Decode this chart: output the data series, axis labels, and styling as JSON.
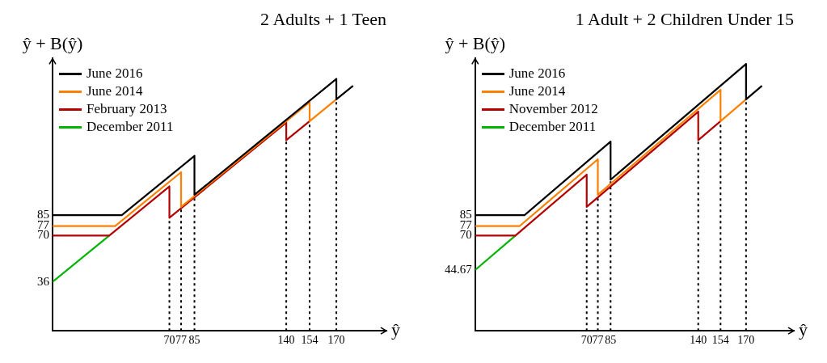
{
  "chart_data": [
    {
      "type": "line",
      "title": "2 Adults + 1 Teen",
      "xlabel": "ŷ",
      "ylabel": "ŷ + B(ŷ)",
      "xlim": [
        0,
        200
      ],
      "ylim": [
        0,
        200
      ],
      "xticks": [
        70,
        77,
        85,
        140,
        154,
        170
      ],
      "yticks": [
        36,
        70,
        77,
        85
      ],
      "grid": false,
      "marker": "none",
      "legend": "top left",
      "series": [
        {
          "name": "June 2016",
          "color": "#000000",
          "x": [
            0,
            41.5,
            85,
            85,
            170,
            170,
            180
          ],
          "values": [
            85,
            85,
            128.5,
            100,
            185,
            170,
            180
          ]
        },
        {
          "name": "June 2014",
          "color": "#ff8000",
          "x": [
            0,
            37.5,
            77,
            77,
            154,
            154,
            170
          ],
          "values": [
            77,
            77,
            116.5,
            91,
            168,
            154,
            170
          ]
        },
        {
          "name": "February 2013",
          "color": "#b30000",
          "x": [
            0,
            34,
            70,
            70,
            140,
            140,
            154
          ],
          "values": [
            70,
            70,
            106,
            83,
            153,
            140,
            154
          ]
        },
        {
          "name": "December 2011",
          "color": "#00b300",
          "x": [
            0,
            34
          ],
          "values": [
            36,
            70
          ]
        }
      ],
      "ref_lines": [
        {
          "axis": "x",
          "value": 70,
          "line_style": "dotted",
          "color": "#000000"
        },
        {
          "axis": "x",
          "value": 77,
          "line_style": "dotted",
          "color": "#000000"
        },
        {
          "axis": "x",
          "value": 85,
          "line_style": "dotted",
          "color": "#000000"
        },
        {
          "axis": "x",
          "value": 140,
          "line_style": "dotted",
          "color": "#000000"
        },
        {
          "axis": "x",
          "value": 154,
          "line_style": "dotted",
          "color": "#000000"
        },
        {
          "axis": "x",
          "value": 170,
          "line_style": "dotted",
          "color": "#000000"
        }
      ]
    },
    {
      "type": "line",
      "title": "1 Adult + 2 Children Under 15",
      "xlabel": "ŷ",
      "ylabel": "ŷ + B(ŷ)",
      "xlim": [
        0,
        200
      ],
      "ylim": [
        0,
        200
      ],
      "xticks": [
        70,
        77,
        85,
        140,
        154,
        170
      ],
      "yticks": [
        44.67,
        70,
        77,
        85
      ],
      "grid": false,
      "marker": "none",
      "legend": "top left",
      "series": [
        {
          "name": "June 2016",
          "color": "#000000",
          "x": [
            0,
            31,
            85,
            85,
            170,
            170,
            180
          ],
          "values": [
            85,
            85,
            139,
            111,
            196,
            170,
            180
          ]
        },
        {
          "name": "June 2014",
          "color": "#ff8000",
          "x": [
            0,
            28,
            77,
            77,
            154,
            154,
            170
          ],
          "values": [
            77,
            77,
            126,
            100,
            177,
            154,
            170
          ]
        },
        {
          "name": "November 2012",
          "color": "#b30000",
          "x": [
            0,
            25.3,
            70,
            70,
            140,
            140,
            154
          ],
          "values": [
            70,
            70,
            114.7,
            91,
            161,
            140,
            154
          ]
        },
        {
          "name": "December 2011",
          "color": "#00b300",
          "x": [
            0,
            25.3
          ],
          "values": [
            44.67,
            70
          ]
        }
      ],
      "ref_lines": [
        {
          "axis": "x",
          "value": 70,
          "line_style": "dotted",
          "color": "#000000"
        },
        {
          "axis": "x",
          "value": 77,
          "line_style": "dotted",
          "color": "#000000"
        },
        {
          "axis": "x",
          "value": 85,
          "line_style": "dotted",
          "color": "#000000"
        },
        {
          "axis": "x",
          "value": 140,
          "line_style": "dotted",
          "color": "#000000"
        },
        {
          "axis": "x",
          "value": 154,
          "line_style": "dotted",
          "color": "#000000"
        },
        {
          "axis": "x",
          "value": 170,
          "line_style": "dotted",
          "color": "#000000"
        }
      ]
    }
  ]
}
